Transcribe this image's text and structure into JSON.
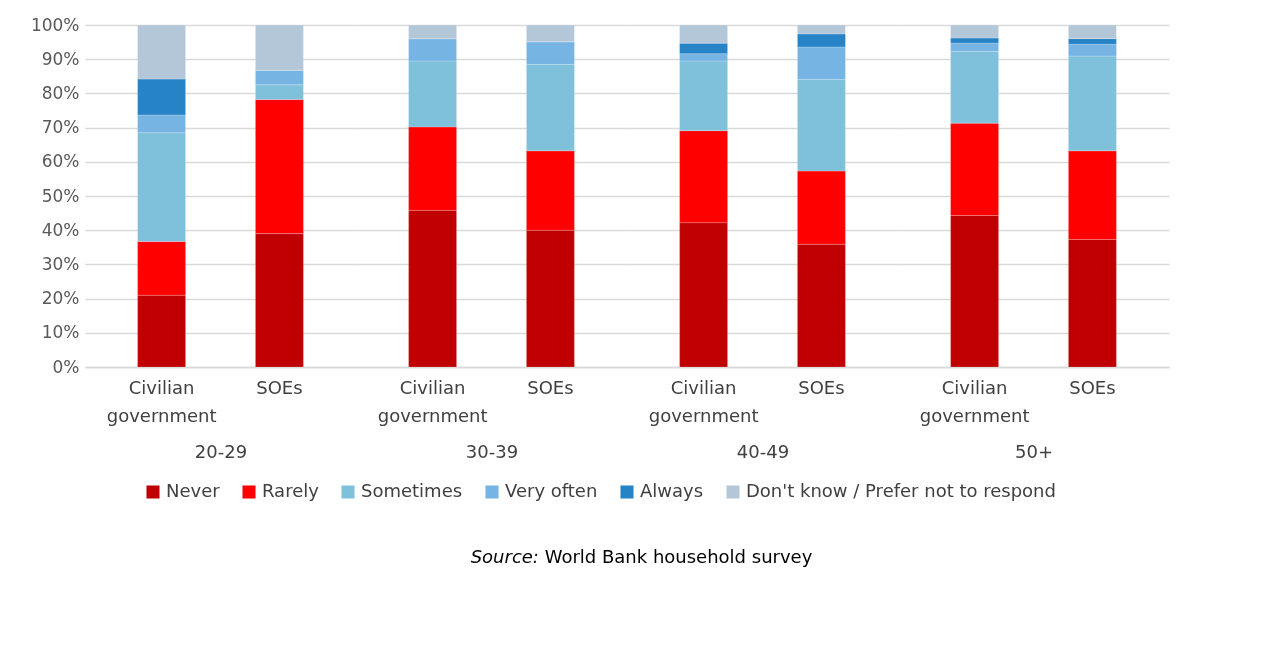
{
  "chart_data": [
    {
      "type": "bar",
      "stacked": true,
      "xlabel": "20-29",
      "categories": [
        "Civilian government",
        "SOEs"
      ],
      "ylim": [
        0,
        100
      ],
      "yticks": [
        {
          "value": 0,
          "label": "0%"
        },
        {
          "value": 10,
          "label": "10%"
        },
        {
          "value": 20,
          "label": "20%"
        },
        {
          "value": 30,
          "label": "30%"
        },
        {
          "value": 40,
          "label": "40%"
        },
        {
          "value": 50,
          "label": "50%"
        },
        {
          "value": 60,
          "label": "60%"
        },
        {
          "value": 70,
          "label": "70%"
        },
        {
          "value": 80,
          "label": "80%"
        },
        {
          "value": 90,
          "label": "90%"
        },
        {
          "value": 100,
          "label": "100%"
        }
      ],
      "grid": "y",
      "legend": "bottom",
      "annotations": [
        "Source: World Bank household survey"
      ],
      "series": [
        {
          "name": "Never",
          "color": "#c00000",
          "values": [
            21,
            39
          ]
        },
        {
          "name": "Rarely",
          "color": "#ff0000",
          "values": [
            15.7,
            39.2
          ]
        },
        {
          "name": "Sometimes",
          "color": "#7fc0db",
          "values": [
            31.8,
            4.3
          ]
        },
        {
          "name": "Very often",
          "color": "#75b4e3",
          "values": [
            5.2,
            4.3
          ]
        },
        {
          "name": "Always",
          "color": "#2683c6",
          "values": [
            10.5,
            0
          ]
        },
        {
          "name": "Don't know / Prefer not to respond",
          "color": "#b4c7d8",
          "values": [
            15.8,
            13.2
          ]
        }
      ]
    },
    {
      "type": "bar",
      "stacked": true,
      "xlabel": "30-39",
      "categories": [
        "Civilian government",
        "SOEs"
      ],
      "ylim": [
        0,
        100
      ],
      "grid": "y",
      "legend": "bottom",
      "tick_labels": "x",
      "series": [
        {
          "name": "Never",
          "color": "#c00000",
          "values": [
            45.8,
            40
          ]
        },
        {
          "name": "Rarely",
          "color": "#ff0000",
          "values": [
            24.4,
            23.2
          ]
        },
        {
          "name": "Sometimes",
          "color": "#7fc0db",
          "values": [
            19.3,
            25.3
          ]
        },
        {
          "name": "Very often",
          "color": "#75b4e3",
          "values": [
            6.5,
            6.6
          ]
        },
        {
          "name": "Always",
          "color": "#2683c6",
          "values": [
            0,
            0
          ]
        },
        {
          "name": "Don't know / Prefer not to respond",
          "color": "#b4c7d8",
          "values": [
            4,
            4.9
          ]
        }
      ]
    },
    {
      "type": "bar",
      "stacked": true,
      "xlabel": "40-49",
      "categories": [
        "Civilian government",
        "SOEs"
      ],
      "ylim": [
        0,
        100
      ],
      "grid": "y",
      "legend": "bottom",
      "tick_labels": "x",
      "series": [
        {
          "name": "Never",
          "color": "#c00000",
          "values": [
            42.2,
            35.9
          ]
        },
        {
          "name": "Rarely",
          "color": "#ff0000",
          "values": [
            26.9,
            21.4
          ]
        },
        {
          "name": "Sometimes",
          "color": "#7fc0db",
          "values": [
            20.4,
            26.8
          ]
        },
        {
          "name": "Very often",
          "color": "#75b4e3",
          "values": [
            2.1,
            9.5
          ]
        },
        {
          "name": "Always",
          "color": "#2683c6",
          "values": [
            3.1,
            3.8
          ]
        },
        {
          "name": "Don't know / Prefer not to respond",
          "color": "#b4c7d8",
          "values": [
            5.3,
            2.6
          ]
        }
      ]
    },
    {
      "type": "bar",
      "stacked": true,
      "xlabel": "50+",
      "categories": [
        "Civilian government",
        "SOEs"
      ],
      "ylim": [
        0,
        100
      ],
      "grid": "y",
      "legend": "bottom",
      "tick_labels": "x",
      "series": [
        {
          "name": "Never",
          "color": "#c00000",
          "values": [
            44.3,
            37.3
          ]
        },
        {
          "name": "Rarely",
          "color": "#ff0000",
          "values": [
            27,
            25.9
          ]
        },
        {
          "name": "Sometimes",
          "color": "#7fc0db",
          "values": [
            21,
            27.7
          ]
        },
        {
          "name": "Very often",
          "color": "#75b4e3",
          "values": [
            2.4,
            3.5
          ]
        },
        {
          "name": "Always",
          "color": "#2683c6",
          "values": [
            1.5,
            1.6
          ]
        },
        {
          "name": "Don't know / Prefer not to respond",
          "color": "#b4c7d8",
          "values": [
            3.8,
            4
          ]
        }
      ]
    }
  ]
}
